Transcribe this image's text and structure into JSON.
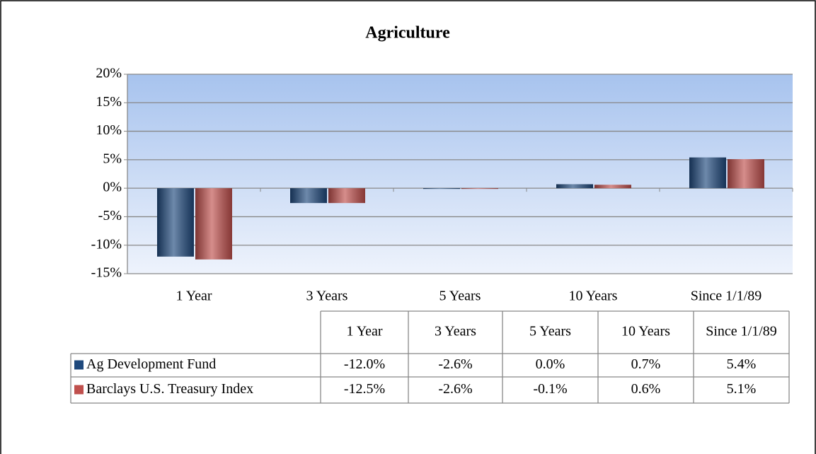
{
  "chart_data": {
    "type": "bar",
    "title": "Agriculture",
    "categories": [
      "1 Year",
      "3 Years",
      "5 Years",
      "10 Years",
      "Since 1/1/89"
    ],
    "series": [
      {
        "name": "Ag Development Fund",
        "color": "#1f497d",
        "values": [
          -12.0,
          -2.6,
          0.0,
          0.7,
          5.4
        ],
        "value_labels": [
          "-12.0%",
          "-2.6%",
          "0.0%",
          "0.7%",
          "5.4%"
        ]
      },
      {
        "name": "Barclays U.S. Treasury Index",
        "color": "#c0504d",
        "values": [
          -12.5,
          -2.6,
          -0.1,
          0.6,
          5.1
        ],
        "value_labels": [
          "-12.5%",
          "-2.6%",
          "-0.1%",
          "0.6%",
          "5.1%"
        ]
      }
    ],
    "ylim": [
      -15,
      20
    ],
    "yticks": [
      {
        "value": -15,
        "label": "-15%"
      },
      {
        "value": -10,
        "label": "-10%"
      },
      {
        "value": -5,
        "label": "-5%"
      },
      {
        "value": 0,
        "label": "0%"
      },
      {
        "value": 5,
        "label": "5%"
      },
      {
        "value": 10,
        "label": "10%"
      },
      {
        "value": 15,
        "label": "15%"
      },
      {
        "value": 20,
        "label": "20%"
      }
    ],
    "grid": true
  }
}
